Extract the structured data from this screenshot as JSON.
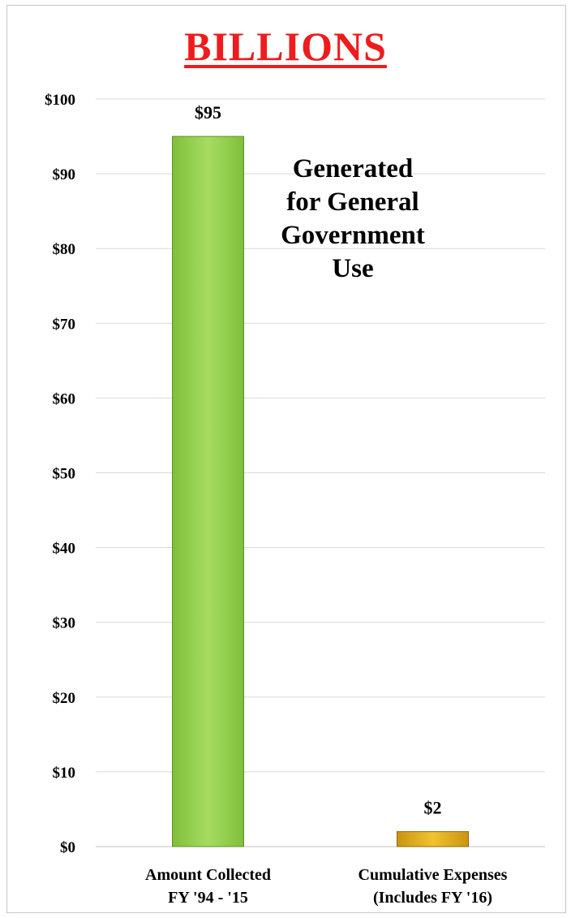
{
  "title": "BILLIONS",
  "annotation": [
    "Generated",
    "for General",
    "Government",
    "Use"
  ],
  "chart_data": {
    "type": "bar",
    "title": "BILLIONS",
    "categories": [
      [
        "Amount Collected",
        "FY '94 - '15"
      ],
      [
        "Cumulative Expenses",
        "(Includes FY '16)"
      ]
    ],
    "values": [
      95,
      2
    ],
    "data_labels": [
      "$95",
      "$2"
    ],
    "bar_colors": [
      "#92d050",
      "#d4a017"
    ],
    "ylim": [
      0,
      100
    ],
    "yticks": [
      0,
      10,
      20,
      30,
      40,
      50,
      60,
      70,
      80,
      90,
      100
    ],
    "ytick_labels": [
      "$0",
      "$10",
      "$20",
      "$30",
      "$40",
      "$50",
      "$60",
      "$70",
      "$80",
      "$90",
      "$100"
    ],
    "grid": true,
    "legend": "none",
    "xlabel": "",
    "ylabel": ""
  }
}
